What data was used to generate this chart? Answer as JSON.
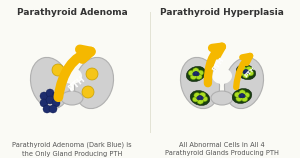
{
  "bg_color": "#fafaf5",
  "border_color": "#d4b86a",
  "thyroid_color": "#d0d0d0",
  "thyroid_edge": "#b0b0b0",
  "adenoma_title": "Parathyroid Adenoma",
  "hyperplasia_title": "Parathyroid Hyperplasia",
  "adenoma_caption": "Parathyroid Adenoma (Dark Blue) is\nthe Only Gland Producing PTH",
  "hyperplasia_caption": "All Abnormal Cells in All 4\nParathyroid Glands Producing PTH",
  "arrow_color": "#f5b800",
  "arrow_edge": "#d09000",
  "pth_text_color": "#ffffff",
  "dark_blue": "#1e2d6e",
  "yellow_gland": "#f5c518",
  "green_dark": "#2a5a10",
  "green_light": "#88cc22",
  "title_fontsize": 6.5,
  "caption_fontsize": 4.8
}
